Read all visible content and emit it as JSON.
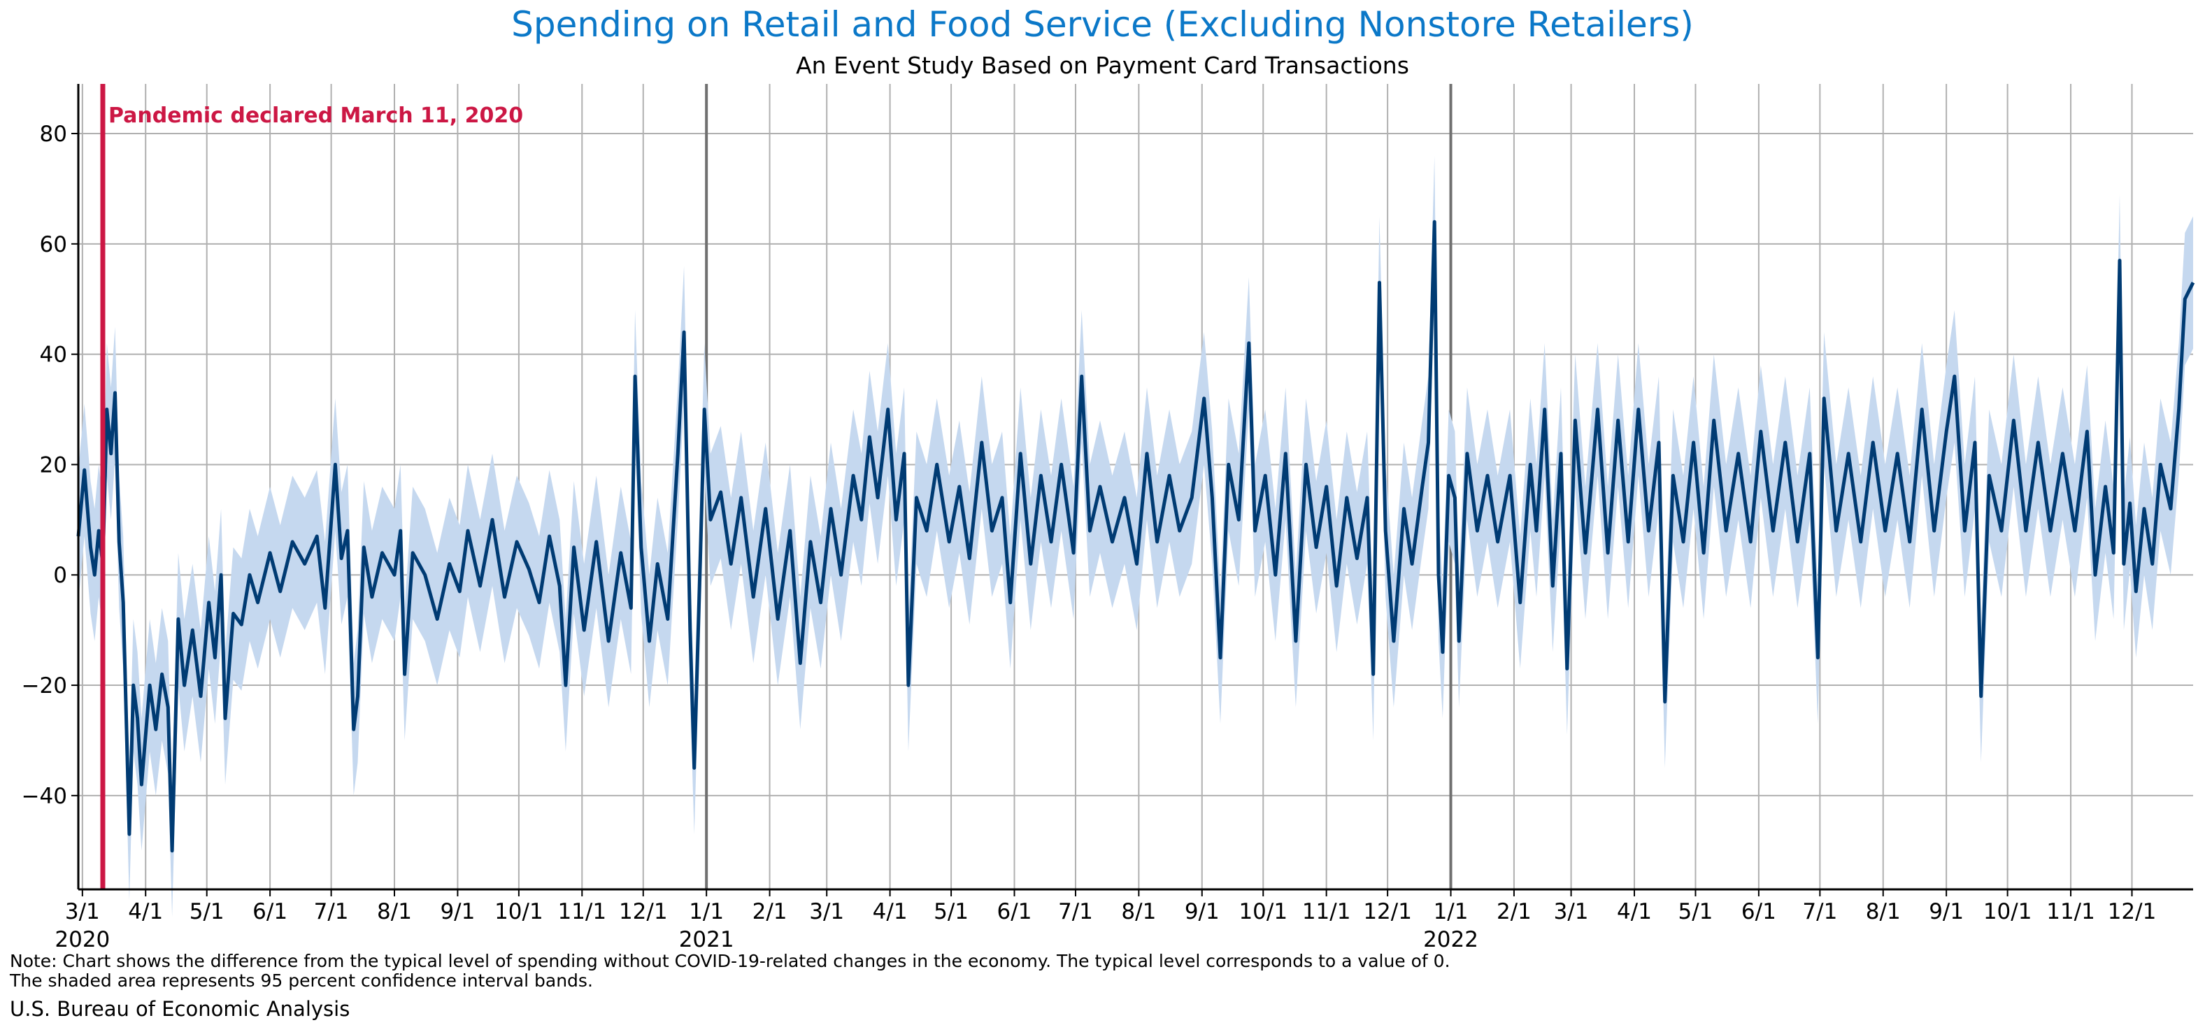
{
  "chart_data": {
    "type": "line",
    "title": "Spending on Retail and Food Service (Excluding Nonstore Retailers)",
    "subtitle": "An Event Study Based on Payment Card Transactions",
    "xlabel": "",
    "ylabel": "",
    "x_range": [
      "2020-02-28",
      "2022-12-31"
    ],
    "ylim": [
      -57,
      89
    ],
    "y_ticks": [
      -40,
      -20,
      0,
      20,
      40,
      60,
      80
    ],
    "grid": true,
    "legend": "none",
    "x_ticks": [
      {
        "date": "2020-03-01",
        "label": "3/1",
        "year": "2020"
      },
      {
        "date": "2020-04-01",
        "label": "4/1"
      },
      {
        "date": "2020-05-01",
        "label": "5/1"
      },
      {
        "date": "2020-06-01",
        "label": "6/1"
      },
      {
        "date": "2020-07-01",
        "label": "7/1"
      },
      {
        "date": "2020-08-01",
        "label": "8/1"
      },
      {
        "date": "2020-09-01",
        "label": "9/1"
      },
      {
        "date": "2020-10-01",
        "label": "10/1"
      },
      {
        "date": "2020-11-01",
        "label": "11/1"
      },
      {
        "date": "2020-12-01",
        "label": "12/1"
      },
      {
        "date": "2021-01-01",
        "label": "1/1",
        "year": "2021"
      },
      {
        "date": "2021-02-01",
        "label": "2/1"
      },
      {
        "date": "2021-03-01",
        "label": "3/1"
      },
      {
        "date": "2021-04-01",
        "label": "4/1"
      },
      {
        "date": "2021-05-01",
        "label": "5/1"
      },
      {
        "date": "2021-06-01",
        "label": "6/1"
      },
      {
        "date": "2021-07-01",
        "label": "7/1"
      },
      {
        "date": "2021-08-01",
        "label": "8/1"
      },
      {
        "date": "2021-09-01",
        "label": "9/1"
      },
      {
        "date": "2021-10-01",
        "label": "10/1"
      },
      {
        "date": "2021-11-01",
        "label": "11/1"
      },
      {
        "date": "2021-12-01",
        "label": "12/1"
      },
      {
        "date": "2022-01-01",
        "label": "1/1",
        "year": "2022"
      },
      {
        "date": "2022-02-01",
        "label": "2/1"
      },
      {
        "date": "2022-03-01",
        "label": "3/1"
      },
      {
        "date": "2022-04-01",
        "label": "4/1"
      },
      {
        "date": "2022-05-01",
        "label": "5/1"
      },
      {
        "date": "2022-06-01",
        "label": "6/1"
      },
      {
        "date": "2022-07-01",
        "label": "7/1"
      },
      {
        "date": "2022-08-01",
        "label": "8/1"
      },
      {
        "date": "2022-09-01",
        "label": "9/1"
      },
      {
        "date": "2022-10-01",
        "label": "10/1"
      },
      {
        "date": "2022-11-01",
        "label": "11/1"
      },
      {
        "date": "2022-12-01",
        "label": "12/1"
      }
    ],
    "year_lines": [
      "2021-01-01",
      "2022-01-01"
    ],
    "annotation": {
      "date": "2020-03-11",
      "text": "Pandemic declared March 11, 2020"
    },
    "band_halfwidth": 12,
    "series": [
      {
        "kind": "line",
        "points": [
          [
            "2020-02-28",
            7
          ],
          [
            "2020-03-02",
            19
          ],
          [
            "2020-03-05",
            5
          ],
          [
            "2020-03-07",
            0
          ],
          [
            "2020-03-09",
            8
          ],
          [
            "2020-03-11",
            2
          ],
          [
            "2020-03-13",
            30
          ],
          [
            "2020-03-15",
            22
          ],
          [
            "2020-03-17",
            33
          ],
          [
            "2020-03-19",
            6
          ],
          [
            "2020-03-21",
            -5
          ],
          [
            "2020-03-24",
            -47
          ],
          [
            "2020-03-26",
            -20
          ],
          [
            "2020-03-28",
            -26
          ],
          [
            "2020-03-30",
            -38
          ],
          [
            "2020-04-03",
            -20
          ],
          [
            "2020-04-06",
            -28
          ],
          [
            "2020-04-09",
            -18
          ],
          [
            "2020-04-12",
            -24
          ],
          [
            "2020-04-14",
            -50
          ],
          [
            "2020-04-17",
            -8
          ],
          [
            "2020-04-20",
            -20
          ],
          [
            "2020-04-24",
            -10
          ],
          [
            "2020-04-28",
            -22
          ],
          [
            "2020-05-02",
            -5
          ],
          [
            "2020-05-05",
            -15
          ],
          [
            "2020-05-08",
            0
          ],
          [
            "2020-05-10",
            -26
          ],
          [
            "2020-05-14",
            -7
          ],
          [
            "2020-05-18",
            -9
          ],
          [
            "2020-05-22",
            0
          ],
          [
            "2020-05-26",
            -5
          ],
          [
            "2020-06-01",
            4
          ],
          [
            "2020-06-06",
            -3
          ],
          [
            "2020-06-12",
            6
          ],
          [
            "2020-06-18",
            2
          ],
          [
            "2020-06-24",
            7
          ],
          [
            "2020-06-28",
            -6
          ],
          [
            "2020-07-03",
            20
          ],
          [
            "2020-07-06",
            3
          ],
          [
            "2020-07-09",
            8
          ],
          [
            "2020-07-12",
            -28
          ],
          [
            "2020-07-14",
            -22
          ],
          [
            "2020-07-17",
            5
          ],
          [
            "2020-07-21",
            -4
          ],
          [
            "2020-07-26",
            4
          ],
          [
            "2020-08-01",
            0
          ],
          [
            "2020-08-04",
            8
          ],
          [
            "2020-08-06",
            -18
          ],
          [
            "2020-08-10",
            4
          ],
          [
            "2020-08-16",
            0
          ],
          [
            "2020-08-22",
            -8
          ],
          [
            "2020-08-28",
            2
          ],
          [
            "2020-09-02",
            -3
          ],
          [
            "2020-09-06",
            8
          ],
          [
            "2020-09-12",
            -2
          ],
          [
            "2020-09-18",
            10
          ],
          [
            "2020-09-24",
            -4
          ],
          [
            "2020-09-30",
            6
          ],
          [
            "2020-10-06",
            1
          ],
          [
            "2020-10-11",
            -5
          ],
          [
            "2020-10-16",
            7
          ],
          [
            "2020-10-21",
            -2
          ],
          [
            "2020-10-24",
            -20
          ],
          [
            "2020-10-28",
            5
          ],
          [
            "2020-11-02",
            -10
          ],
          [
            "2020-11-08",
            6
          ],
          [
            "2020-11-14",
            -12
          ],
          [
            "2020-11-20",
            4
          ],
          [
            "2020-11-25",
            -6
          ],
          [
            "2020-11-27",
            36
          ],
          [
            "2020-11-30",
            5
          ],
          [
            "2020-12-04",
            -12
          ],
          [
            "2020-12-08",
            2
          ],
          [
            "2020-12-13",
            -8
          ],
          [
            "2020-12-18",
            22
          ],
          [
            "2020-12-21",
            44
          ],
          [
            "2020-12-24",
            -10
          ],
          [
            "2020-12-26",
            -35
          ],
          [
            "2020-12-29",
            3
          ],
          [
            "2020-12-31",
            30
          ],
          [
            "2021-01-03",
            10
          ],
          [
            "2021-01-08",
            15
          ],
          [
            "2021-01-13",
            2
          ],
          [
            "2021-01-18",
            14
          ],
          [
            "2021-01-24",
            -4
          ],
          [
            "2021-01-30",
            12
          ],
          [
            "2021-02-05",
            -8
          ],
          [
            "2021-02-11",
            8
          ],
          [
            "2021-02-16",
            -16
          ],
          [
            "2021-02-21",
            6
          ],
          [
            "2021-02-26",
            -5
          ],
          [
            "2021-03-03",
            12
          ],
          [
            "2021-03-08",
            0
          ],
          [
            "2021-03-14",
            18
          ],
          [
            "2021-03-18",
            10
          ],
          [
            "2021-03-22",
            25
          ],
          [
            "2021-03-26",
            14
          ],
          [
            "2021-03-31",
            30
          ],
          [
            "2021-04-04",
            10
          ],
          [
            "2021-04-08",
            22
          ],
          [
            "2021-04-10",
            -20
          ],
          [
            "2021-04-14",
            14
          ],
          [
            "2021-04-19",
            8
          ],
          [
            "2021-04-24",
            20
          ],
          [
            "2021-04-30",
            6
          ],
          [
            "2021-05-05",
            16
          ],
          [
            "2021-05-10",
            3
          ],
          [
            "2021-05-16",
            24
          ],
          [
            "2021-05-21",
            8
          ],
          [
            "2021-05-26",
            14
          ],
          [
            "2021-05-30",
            -5
          ],
          [
            "2021-06-04",
            22
          ],
          [
            "2021-06-09",
            2
          ],
          [
            "2021-06-14",
            18
          ],
          [
            "2021-06-19",
            6
          ],
          [
            "2021-06-24",
            20
          ],
          [
            "2021-06-30",
            4
          ],
          [
            "2021-07-04",
            36
          ],
          [
            "2021-07-08",
            8
          ],
          [
            "2021-07-13",
            16
          ],
          [
            "2021-07-19",
            6
          ],
          [
            "2021-07-25",
            14
          ],
          [
            "2021-07-31",
            2
          ],
          [
            "2021-08-05",
            22
          ],
          [
            "2021-08-10",
            6
          ],
          [
            "2021-08-16",
            18
          ],
          [
            "2021-08-21",
            8
          ],
          [
            "2021-08-27",
            14
          ],
          [
            "2021-09-02",
            32
          ],
          [
            "2021-09-06",
            14
          ],
          [
            "2021-09-10",
            -15
          ],
          [
            "2021-09-14",
            20
          ],
          [
            "2021-09-19",
            10
          ],
          [
            "2021-09-24",
            42
          ],
          [
            "2021-09-27",
            8
          ],
          [
            "2021-10-02",
            18
          ],
          [
            "2021-10-07",
            0
          ],
          [
            "2021-10-12",
            22
          ],
          [
            "2021-10-17",
            -12
          ],
          [
            "2021-10-22",
            20
          ],
          [
            "2021-10-27",
            5
          ],
          [
            "2021-11-01",
            16
          ],
          [
            "2021-11-06",
            -2
          ],
          [
            "2021-11-11",
            14
          ],
          [
            "2021-11-16",
            3
          ],
          [
            "2021-11-21",
            14
          ],
          [
            "2021-11-24",
            -18
          ],
          [
            "2021-11-27",
            53
          ],
          [
            "2021-11-30",
            8
          ],
          [
            "2021-12-04",
            -12
          ],
          [
            "2021-12-09",
            12
          ],
          [
            "2021-12-13",
            2
          ],
          [
            "2021-12-18",
            16
          ],
          [
            "2021-12-21",
            24
          ],
          [
            "2021-12-24",
            64
          ],
          [
            "2021-12-26",
            0
          ],
          [
            "2021-12-28",
            -14
          ],
          [
            "2021-12-31",
            18
          ],
          [
            "2022-01-03",
            14
          ],
          [
            "2022-01-05",
            -12
          ],
          [
            "2022-01-09",
            22
          ],
          [
            "2022-01-14",
            8
          ],
          [
            "2022-01-19",
            18
          ],
          [
            "2022-01-24",
            6
          ],
          [
            "2022-01-30",
            18
          ],
          [
            "2022-02-04",
            -5
          ],
          [
            "2022-02-09",
            20
          ],
          [
            "2022-02-12",
            8
          ],
          [
            "2022-02-16",
            30
          ],
          [
            "2022-02-20",
            -2
          ],
          [
            "2022-02-24",
            22
          ],
          [
            "2022-02-27",
            -17
          ],
          [
            "2022-03-03",
            28
          ],
          [
            "2022-03-08",
            4
          ],
          [
            "2022-03-14",
            30
          ],
          [
            "2022-03-19",
            4
          ],
          [
            "2022-03-24",
            28
          ],
          [
            "2022-03-29",
            6
          ],
          [
            "2022-04-03",
            30
          ],
          [
            "2022-04-08",
            8
          ],
          [
            "2022-04-13",
            24
          ],
          [
            "2022-04-16",
            -23
          ],
          [
            "2022-04-20",
            18
          ],
          [
            "2022-04-25",
            6
          ],
          [
            "2022-04-30",
            24
          ],
          [
            "2022-05-05",
            4
          ],
          [
            "2022-05-10",
            28
          ],
          [
            "2022-05-16",
            8
          ],
          [
            "2022-05-22",
            22
          ],
          [
            "2022-05-28",
            6
          ],
          [
            "2022-06-02",
            26
          ],
          [
            "2022-06-08",
            8
          ],
          [
            "2022-06-14",
            24
          ],
          [
            "2022-06-20",
            6
          ],
          [
            "2022-06-26",
            22
          ],
          [
            "2022-06-30",
            -15
          ],
          [
            "2022-07-03",
            32
          ],
          [
            "2022-07-09",
            8
          ],
          [
            "2022-07-15",
            22
          ],
          [
            "2022-07-21",
            6
          ],
          [
            "2022-07-27",
            24
          ],
          [
            "2022-08-02",
            8
          ],
          [
            "2022-08-08",
            22
          ],
          [
            "2022-08-14",
            6
          ],
          [
            "2022-08-20",
            30
          ],
          [
            "2022-08-26",
            8
          ],
          [
            "2022-09-01",
            26
          ],
          [
            "2022-09-05",
            36
          ],
          [
            "2022-09-10",
            8
          ],
          [
            "2022-09-15",
            24
          ],
          [
            "2022-09-18",
            -22
          ],
          [
            "2022-09-22",
            18
          ],
          [
            "2022-09-28",
            8
          ],
          [
            "2022-10-04",
            28
          ],
          [
            "2022-10-10",
            8
          ],
          [
            "2022-10-16",
            24
          ],
          [
            "2022-10-22",
            8
          ],
          [
            "2022-10-28",
            22
          ],
          [
            "2022-11-03",
            8
          ],
          [
            "2022-11-09",
            26
          ],
          [
            "2022-11-13",
            0
          ],
          [
            "2022-11-18",
            16
          ],
          [
            "2022-11-22",
            4
          ],
          [
            "2022-11-25",
            57
          ],
          [
            "2022-11-27",
            2
          ],
          [
            "2022-11-30",
            13
          ],
          [
            "2022-12-03",
            -3
          ],
          [
            "2022-12-07",
            12
          ],
          [
            "2022-12-11",
            2
          ],
          [
            "2022-12-15",
            20
          ],
          [
            "2022-12-20",
            12
          ],
          [
            "2022-12-24",
            30
          ],
          [
            "2022-12-27",
            50
          ],
          [
            "2022-12-31",
            53
          ]
        ]
      }
    ],
    "colors": {
      "line": "#003b73",
      "band": "#c5d8ef",
      "annotation": "#cc1744",
      "title": "#0b78c8",
      "grid": "#b0b0b0",
      "year_line": "#707070"
    }
  },
  "notes": [
    "Note: Chart shows the difference from the typical level of spending without COVID-19-related changes in the economy. The typical level corresponds to a value of 0.",
    "The shaded area represents 95 percent confidence interval bands."
  ],
  "source": "U.S. Bureau of Economic Analysis"
}
